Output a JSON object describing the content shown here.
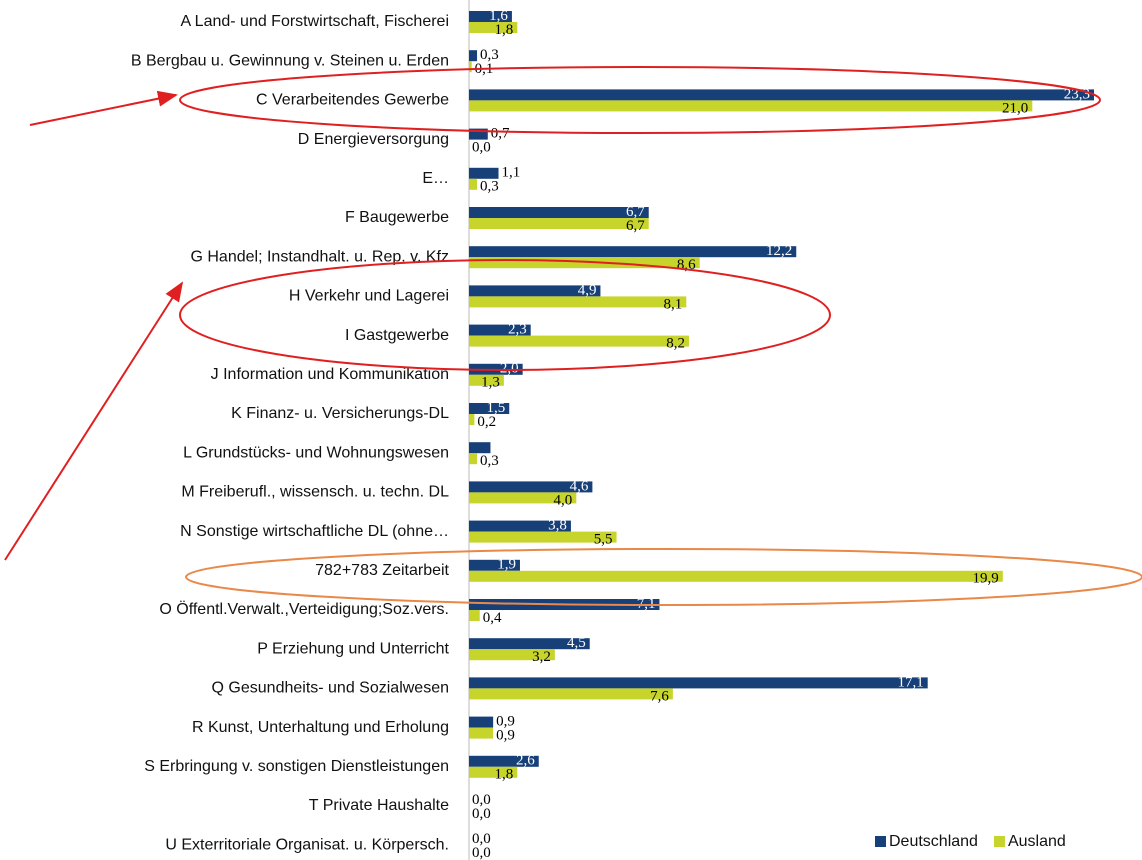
{
  "chart_data": {
    "type": "hbar",
    "categories": [
      "A Land- und Forstwirtschaft, Fischerei",
      "B Bergbau u. Gewinnung v. Steinen u. Erden",
      "C Verarbeitendes Gewerbe",
      "D Energieversorgung",
      "E…",
      "F Baugewerbe",
      "G Handel; Instandhalt. u. Rep. v. Kfz",
      "H Verkehr und Lagerei",
      "I Gastgewerbe",
      "J Information und Kommunikation",
      "K Finanz- u. Versicherungs-DL",
      "L Grundstücks- und Wohnungswesen",
      "M Freiberufl., wissensch. u. techn. DL",
      "N Sonstige wirtschaftliche DL (ohne…",
      "782+783 Zeitarbeit",
      "O Öffentl.Verwalt.,Verteidigung;Soz.vers.",
      "P Erziehung und Unterricht",
      "Q Gesundheits- und Sozialwesen",
      "R Kunst, Unterhaltung und Erholung",
      "S Erbringung v. sonstigen Dienstleistungen",
      "T Private Haushalte",
      "U Exterritoriale Organisat. u. Körpersch."
    ],
    "series": [
      {
        "name": "Deutschland",
        "color": "#173f78",
        "label_color": "#ffffff",
        "values": [
          1.6,
          0.3,
          23.3,
          0.7,
          1.1,
          6.7,
          12.2,
          4.9,
          2.3,
          2.0,
          1.5,
          0.8,
          4.6,
          3.8,
          1.9,
          7.1,
          4.5,
          17.1,
          0.9,
          2.6,
          0.0,
          0.0
        ],
        "value_labels": [
          "1,6",
          "0,3",
          "23,3",
          "0,7",
          "1,1",
          "6,7",
          "12,2",
          "4,9",
          "2,3",
          "2,0",
          "1,5",
          null,
          "4,6",
          "3,8",
          "1,9",
          "7,1",
          "4,5",
          "17,1",
          "0,9",
          "2,6",
          "0,0",
          "0,0"
        ]
      },
      {
        "name": "Ausland",
        "color": "#c6d42b",
        "label_color": "#000000",
        "values": [
          1.8,
          0.1,
          21.0,
          0.0,
          0.3,
          6.7,
          8.6,
          8.1,
          8.2,
          1.3,
          0.2,
          0.3,
          4.0,
          5.5,
          19.9,
          0.4,
          3.2,
          7.6,
          0.9,
          1.8,
          0.0,
          0.0
        ],
        "value_labels": [
          "1,8",
          "0,1",
          "21,0",
          "0,0",
          "0,3",
          "6,7",
          "8,6",
          "8,1",
          "8,2",
          "1,3",
          "0,2",
          "0,3",
          "4,0",
          "5,5",
          "19,9",
          "0,4",
          "3,2",
          "7,6",
          "0,9",
          "1,8",
          "0,0",
          "0,0"
        ]
      }
    ],
    "xlim": [
      0,
      23.3
    ],
    "legend": "bottom-right"
  }
}
